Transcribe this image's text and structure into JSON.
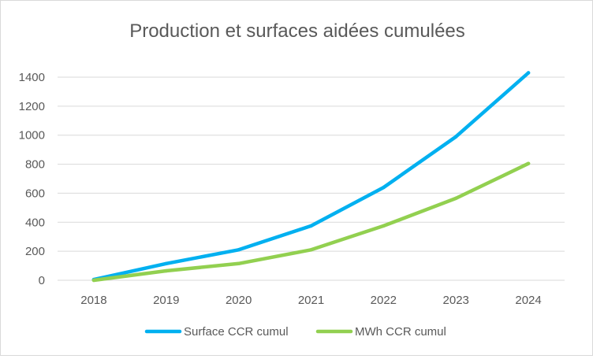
{
  "chart_data": {
    "type": "line",
    "title": "Production et surfaces aidées cumulées",
    "xlabel": "",
    "ylabel": "",
    "categories": [
      "2018",
      "2019",
      "2020",
      "2021",
      "2022",
      "2023",
      "2024"
    ],
    "ylim": [
      0,
      1400
    ],
    "yticks": [
      "0",
      "200",
      "400",
      "600",
      "800",
      "1000",
      "1200",
      "1400"
    ],
    "grid": true,
    "legend_position": "bottom",
    "series": [
      {
        "name": "Surface CCR cumul",
        "color": "#00b0f0",
        "values": [
          5,
          115,
          210,
          375,
          640,
          990,
          1430
        ]
      },
      {
        "name": "MWh CCR cumul",
        "color": "#92d050",
        "values": [
          0,
          65,
          115,
          210,
          375,
          565,
          805
        ]
      }
    ]
  }
}
